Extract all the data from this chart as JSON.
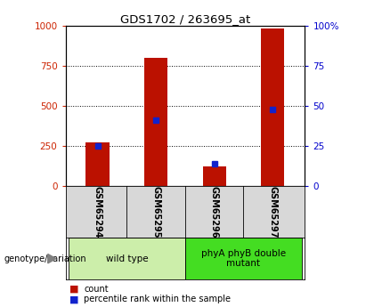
{
  "title": "GDS1702 / 263695_at",
  "samples": [
    "GSM65294",
    "GSM65295",
    "GSM65296",
    "GSM65297"
  ],
  "counts": [
    270,
    800,
    120,
    985
  ],
  "percentiles": [
    25,
    41,
    14,
    48
  ],
  "groups": [
    {
      "label": "wild type",
      "samples": [
        0,
        1
      ],
      "color": "#cceeaa"
    },
    {
      "label": "phyA phyB double\nmutant",
      "samples": [
        2,
        3
      ],
      "color": "#44dd22"
    }
  ],
  "ylim_left": [
    0,
    1000
  ],
  "ylim_right": [
    0,
    100
  ],
  "yticks_left": [
    0,
    250,
    500,
    750,
    1000
  ],
  "yticks_right": [
    0,
    25,
    50,
    75,
    100
  ],
  "bar_color": "#bb1100",
  "dot_color": "#1122cc",
  "bg_color": "#d8d8d8",
  "plot_bg": "#ffffff",
  "label_color_left": "#cc2200",
  "label_color_right": "#0000cc",
  "genotype_label": "genotype/variation",
  "legend_count": "count",
  "legend_pct": "percentile rank within the sample"
}
